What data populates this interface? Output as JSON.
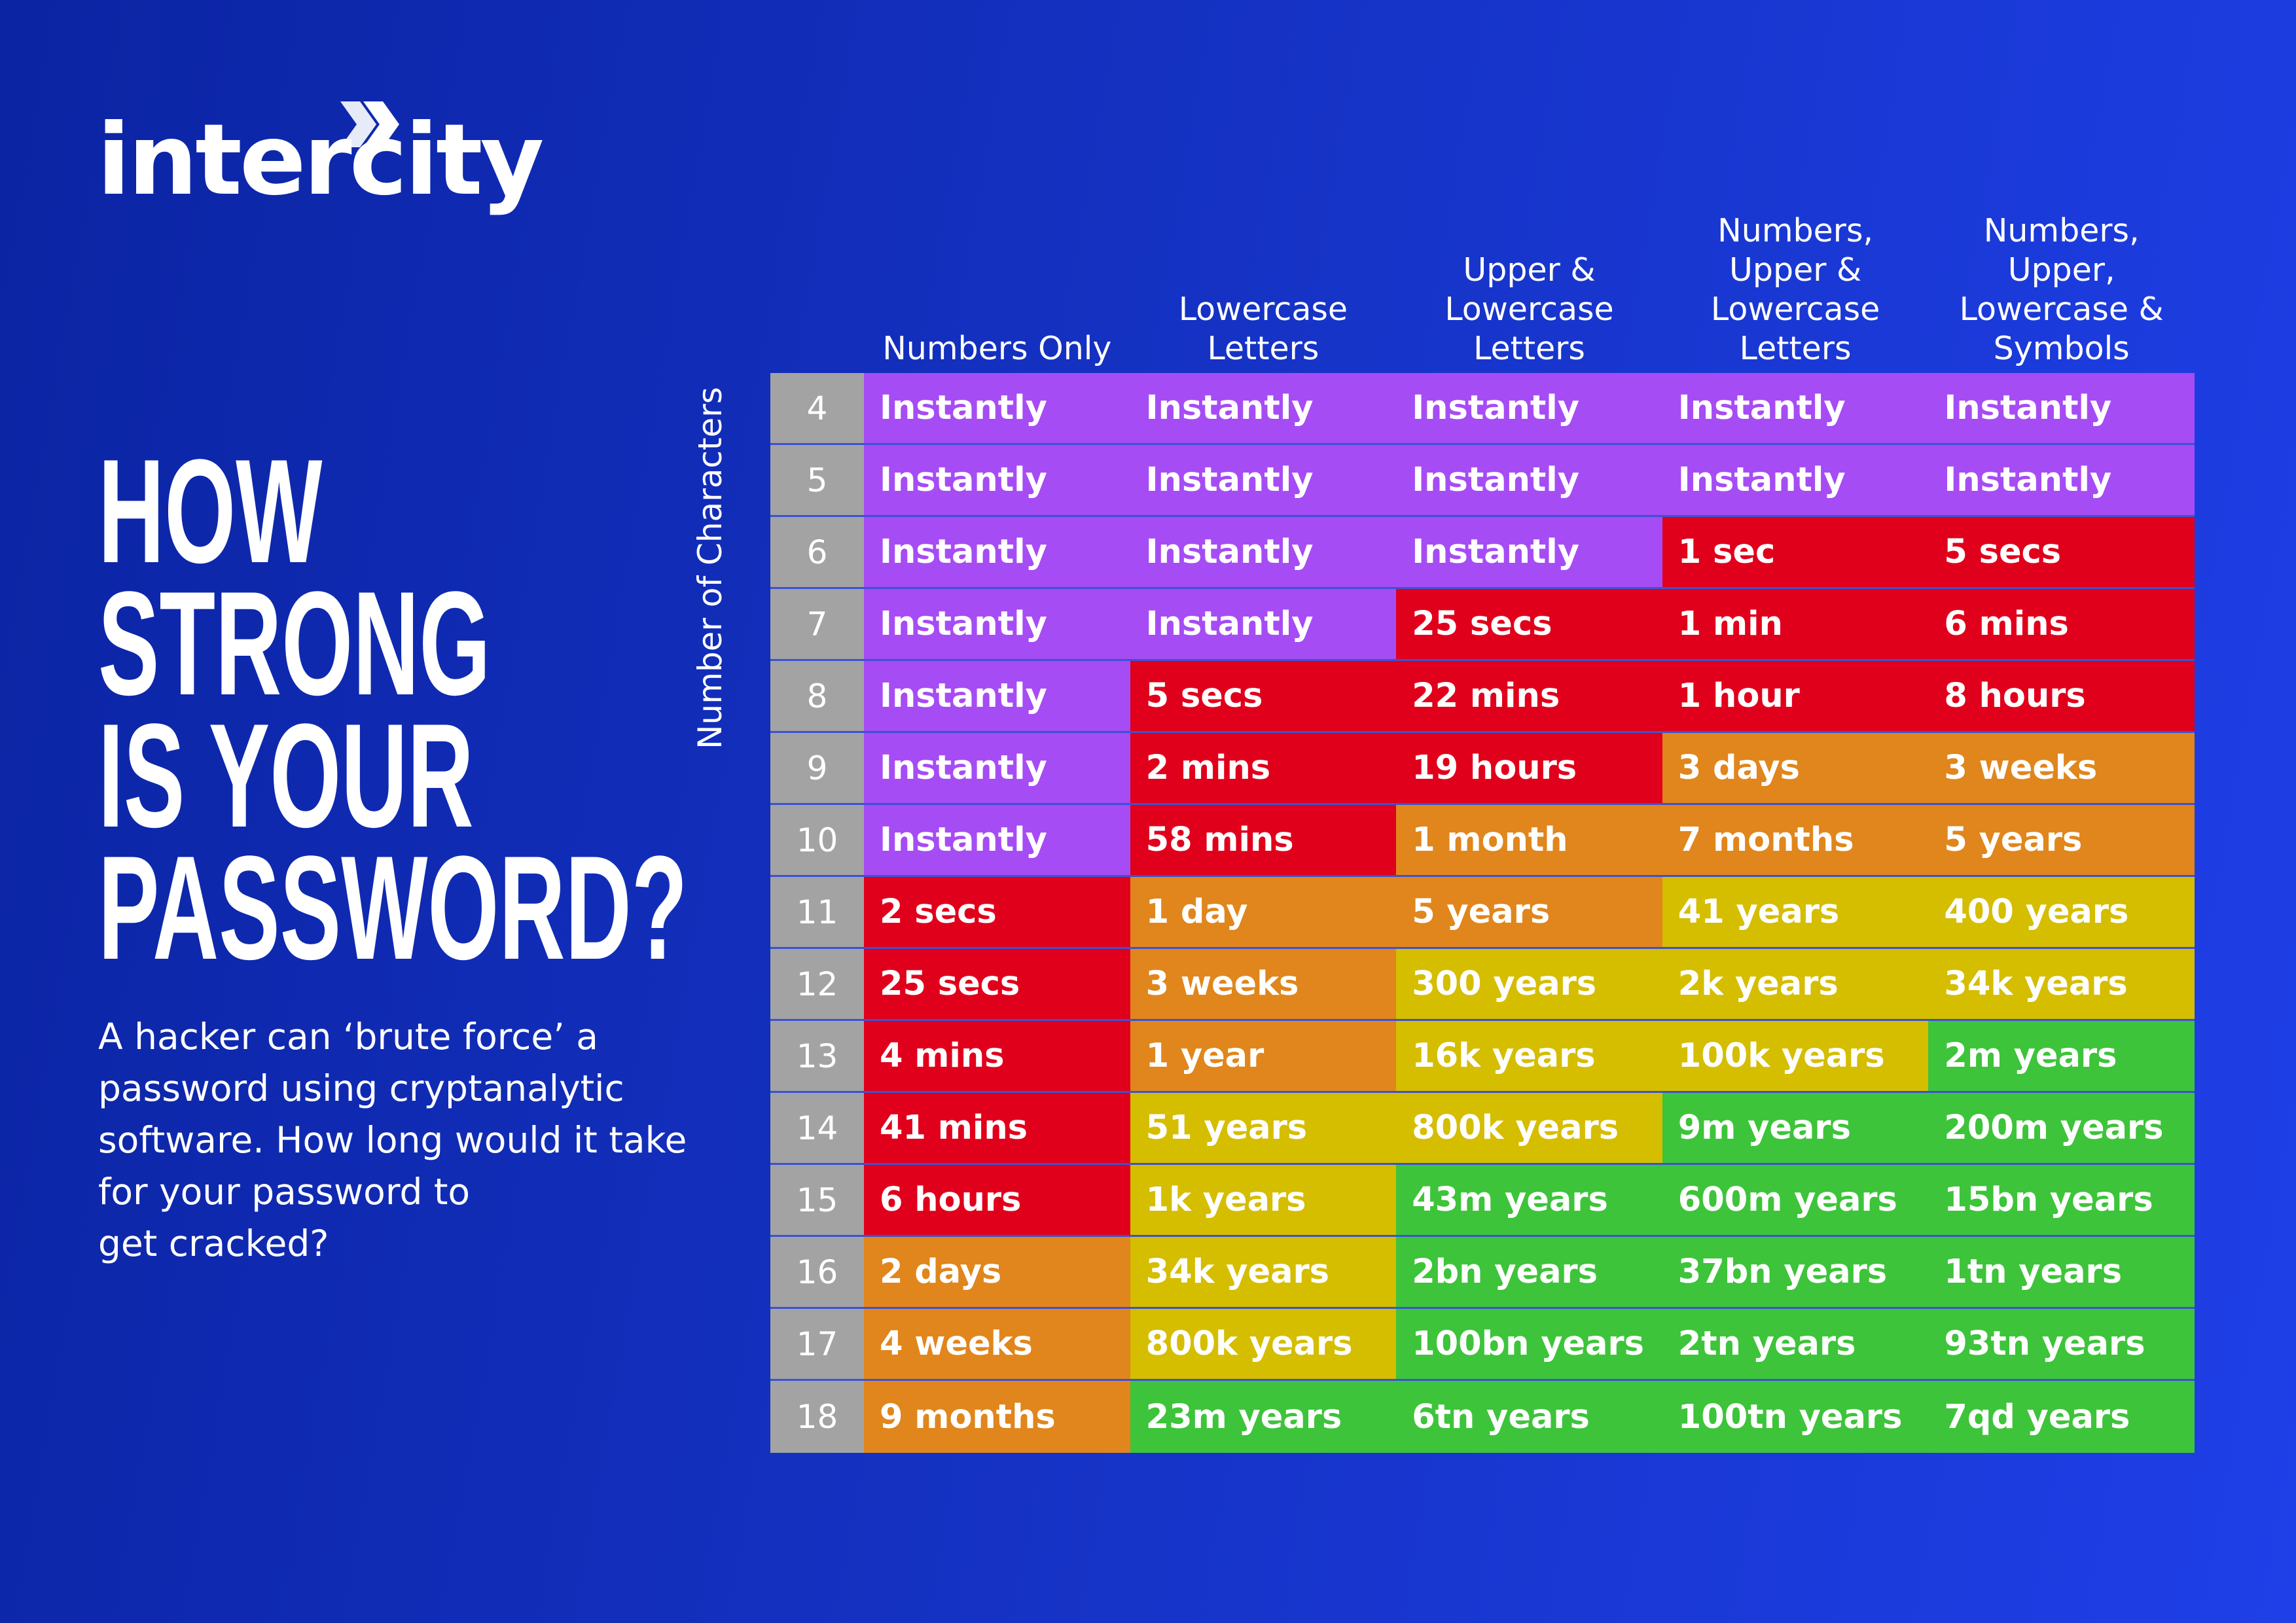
{
  "logo": "intercity",
  "title_lines": [
    "HOW",
    "STRONG",
    "IS YOUR",
    "PASSWORD?"
  ],
  "description_lines": [
    "A hacker can ‘brute force’ a",
    "password using cryptanalytic",
    "software. How long would it take",
    "for your password to",
    "get cracked?"
  ],
  "table": {
    "row_header_label": "Number of Characters",
    "columns": [
      "Numbers Only",
      "Lowercase Letters",
      "Upper & Lowercase Letters",
      "Numbers, Upper & Lowercase Letters",
      "Numbers, Upper, Lowercase & Symbols"
    ],
    "rows": [
      {
        "length": 4,
        "cells": [
          "Instantly",
          "Instantly",
          "Instantly",
          "Instantly",
          "Instantly"
        ],
        "colors": [
          "#a64cf4",
          "#a64cf4",
          "#a64cf4",
          "#a64cf4",
          "#a64cf4"
        ]
      },
      {
        "length": 5,
        "cells": [
          "Instantly",
          "Instantly",
          "Instantly",
          "Instantly",
          "Instantly"
        ],
        "colors": [
          "#a64cf4",
          "#a64cf4",
          "#a64cf4",
          "#a64cf4",
          "#a64cf4"
        ]
      },
      {
        "length": 6,
        "cells": [
          "Instantly",
          "Instantly",
          "Instantly",
          "1 sec",
          "5 secs"
        ],
        "colors": [
          "#a64cf4",
          "#a64cf4",
          "#a64cf4",
          "#e0001c",
          "#e0001c"
        ]
      },
      {
        "length": 7,
        "cells": [
          "Instantly",
          "Instantly",
          "25 secs",
          "1 min",
          "6 mins"
        ],
        "colors": [
          "#a64cf4",
          "#a64cf4",
          "#e0001c",
          "#e0001c",
          "#e0001c"
        ]
      },
      {
        "length": 8,
        "cells": [
          "Instantly",
          "5 secs",
          "22 mins",
          "1 hour",
          "8 hours"
        ],
        "colors": [
          "#a64cf4",
          "#e0001c",
          "#e0001c",
          "#e0001c",
          "#e0001c"
        ]
      },
      {
        "length": 9,
        "cells": [
          "Instantly",
          "2 mins",
          "19 hours",
          "3 days",
          "3 weeks"
        ],
        "colors": [
          "#a64cf4",
          "#e0001c",
          "#e0001c",
          "#e0861c",
          "#e0861c"
        ]
      },
      {
        "length": 10,
        "cells": [
          "Instantly",
          "58 mins",
          "1 month",
          "7 months",
          "5 years"
        ],
        "colors": [
          "#a64cf4",
          "#e0001c",
          "#e0861c",
          "#e0861c",
          "#e0861c"
        ]
      },
      {
        "length": 11,
        "cells": [
          "2 secs",
          "1 day",
          "5 years",
          "41 years",
          "400 years"
        ],
        "colors": [
          "#e0001c",
          "#e0861c",
          "#e0861c",
          "#d5bd00",
          "#d5bd00"
        ]
      },
      {
        "length": 12,
        "cells": [
          "25 secs",
          "3 weeks",
          "300 years",
          "2k years",
          "34k years"
        ],
        "colors": [
          "#e0001c",
          "#e0861c",
          "#d5bd00",
          "#d5bd00",
          "#d5bd00"
        ]
      },
      {
        "length": 13,
        "cells": [
          "4 mins",
          "1 year",
          "16k years",
          "100k years",
          "2m years"
        ],
        "colors": [
          "#e0001c",
          "#e0861c",
          "#d5bd00",
          "#d5bd00",
          "#3dc43a"
        ]
      },
      {
        "length": 14,
        "cells": [
          "41 mins",
          "51 years",
          "800k years",
          "9m years",
          "200m years"
        ],
        "colors": [
          "#e0001c",
          "#d5bd00",
          "#d5bd00",
          "#3dc43a",
          "#3dc43a"
        ]
      },
      {
        "length": 15,
        "cells": [
          "6 hours",
          "1k years",
          "43m years",
          "600m years",
          "15bn years"
        ],
        "colors": [
          "#e0001c",
          "#d5bd00",
          "#3dc43a",
          "#3dc43a",
          "#3dc43a"
        ]
      },
      {
        "length": 16,
        "cells": [
          "2 days",
          "34k years",
          "2bn years",
          "37bn years",
          "1tn years"
        ],
        "colors": [
          "#e0861c",
          "#d5bd00",
          "#3dc43a",
          "#3dc43a",
          "#3dc43a"
        ]
      },
      {
        "length": 17,
        "cells": [
          "4 weeks",
          "800k years",
          "100bn years",
          "2tn years",
          "93tn years"
        ],
        "colors": [
          "#e0861c",
          "#d5bd00",
          "#3dc43a",
          "#3dc43a",
          "#3dc43a"
        ]
      },
      {
        "length": 18,
        "cells": [
          "9 months",
          "23m years",
          "6tn years",
          "100tn years",
          "7qd years"
        ],
        "colors": [
          "#e0861c",
          "#3dc43a",
          "#3dc43a",
          "#3dc43a",
          "#3dc43a"
        ]
      }
    ]
  }
}
